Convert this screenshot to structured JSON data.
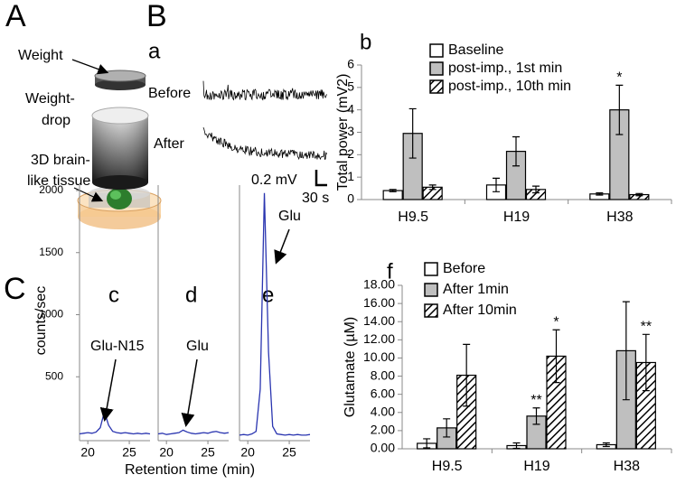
{
  "figure": {
    "panel_labels": [
      "A",
      "B",
      "C"
    ],
    "illustration": {
      "weight": "Weight",
      "weight_drop": [
        "Weight-",
        "drop"
      ],
      "tissue": [
        "3D brain-",
        "like tissue"
      ]
    },
    "traces": {
      "label": "a",
      "before": "Before",
      "after": "After",
      "scale_v": "0.2 mV",
      "scale_t": "30 s"
    }
  },
  "chart_data": [
    {
      "type": "bar",
      "label": "b",
      "ylabel": "Total power (mV2)",
      "categories": [
        "H9.5",
        "H19",
        "H38"
      ],
      "ylim": [
        0,
        6
      ],
      "yticks": [
        0,
        1,
        2,
        3,
        4,
        5,
        6
      ],
      "legend": "top",
      "series": [
        {
          "name": "Baseline",
          "color": "#ffffff",
          "values": [
            0.4,
            0.65,
            0.25
          ],
          "errors": [
            0.05,
            0.3,
            0.05
          ],
          "significance": [
            null,
            null,
            null
          ]
        },
        {
          "name": "post-imp., 1st min",
          "color": "#bfbfbf",
          "values": [
            2.95,
            2.15,
            4.0
          ],
          "errors": [
            1.1,
            0.65,
            1.1
          ],
          "significance": [
            null,
            null,
            "*"
          ]
        },
        {
          "name": "post-imp., 10th min",
          "color": "#ffffff",
          "pattern": "hatch",
          "values": [
            0.55,
            0.45,
            0.22
          ],
          "errors": [
            0.1,
            0.15,
            0.05
          ],
          "significance": [
            null,
            null,
            null
          ]
        }
      ]
    },
    {
      "type": "line",
      "label": "c",
      "ylabel": "counts/sec",
      "annotation": "Glu-N15",
      "color": "#2a35b0",
      "x": [
        19,
        19.5,
        20,
        20.5,
        21,
        21.5,
        22,
        22.5,
        23,
        23.5,
        24,
        24.5,
        25,
        25.5,
        26,
        26.5,
        27,
        27.5
      ],
      "values": [
        40,
        45,
        50,
        45,
        55,
        90,
        220,
        110,
        60,
        50,
        45,
        50,
        45,
        40,
        45,
        40,
        45,
        40
      ],
      "xlim": [
        19,
        27.5
      ],
      "xticks": [
        20,
        25
      ],
      "ylim": [
        0,
        2000
      ],
      "yticks": [
        500,
        1000,
        1500,
        2000
      ]
    },
    {
      "type": "line",
      "label": "d",
      "annotation": "Glu",
      "color": "#2a35b0",
      "x": [
        19,
        19.5,
        20,
        20.5,
        21,
        21.5,
        22,
        22.5,
        23,
        23.5,
        24,
        24.5,
        25,
        25.5,
        26,
        26.5,
        27,
        27.5
      ],
      "values": [
        40,
        45,
        35,
        40,
        45,
        50,
        70,
        55,
        45,
        40,
        45,
        50,
        45,
        55,
        60,
        50,
        45,
        50
      ],
      "xlim": [
        19,
        27.5
      ],
      "xticks": [
        20,
        25
      ],
      "ylim": [
        0,
        2000
      ]
    },
    {
      "type": "line",
      "label": "e",
      "annotation": "Glu",
      "color": "#2a35b0",
      "x": [
        19,
        19.5,
        20,
        20.5,
        21,
        21.5,
        22,
        22.5,
        23,
        23.5,
        24,
        24.5,
        25,
        25.5,
        26,
        26.5,
        27,
        27.5
      ],
      "values": [
        30,
        35,
        30,
        40,
        60,
        400,
        1980,
        700,
        100,
        40,
        35,
        30,
        35,
        30,
        35,
        30,
        30,
        35
      ],
      "xlim": [
        19,
        27.5
      ],
      "xticks": [
        20,
        25
      ],
      "ylim": [
        0,
        2000
      ]
    },
    {
      "type": "bar",
      "label": "f",
      "ylabel": "Glutamate (µM)",
      "xlabel_shared": "Retention time (min)",
      "categories": [
        "H9.5",
        "H19",
        "H38"
      ],
      "ylim": [
        0,
        18
      ],
      "yticks": [
        {
          "value": 0,
          "label": "0.00"
        },
        {
          "value": 2,
          "label": "2.00"
        },
        {
          "value": 4,
          "label": "4.00"
        },
        {
          "value": 6,
          "label": "6.00"
        },
        {
          "value": 8,
          "label": "8.00"
        },
        {
          "value": 10,
          "label": "10.00"
        },
        {
          "value": 12,
          "label": "12.00"
        },
        {
          "value": 14,
          "label": "14.00"
        },
        {
          "value": 16,
          "label": "16.00"
        },
        {
          "value": 18,
          "label": "18.00"
        }
      ],
      "legend": "top",
      "series": [
        {
          "name": "Before",
          "color": "#ffffff",
          "values": [
            0.6,
            0.35,
            0.45
          ],
          "errors": [
            0.5,
            0.3,
            0.2
          ],
          "significance": [
            null,
            null,
            null
          ]
        },
        {
          "name": "After 1min",
          "color": "#bfbfbf",
          "values": [
            2.3,
            3.6,
            10.8
          ],
          "errors": [
            1.0,
            0.9,
            5.4
          ],
          "significance": [
            null,
            "**",
            null
          ]
        },
        {
          "name": "After 10min",
          "color": "#ffffff",
          "pattern": "hatch",
          "values": [
            8.1,
            10.2,
            9.5
          ],
          "errors": [
            3.4,
            2.9,
            3.1
          ],
          "significance": [
            null,
            "*",
            "**"
          ]
        }
      ]
    }
  ]
}
